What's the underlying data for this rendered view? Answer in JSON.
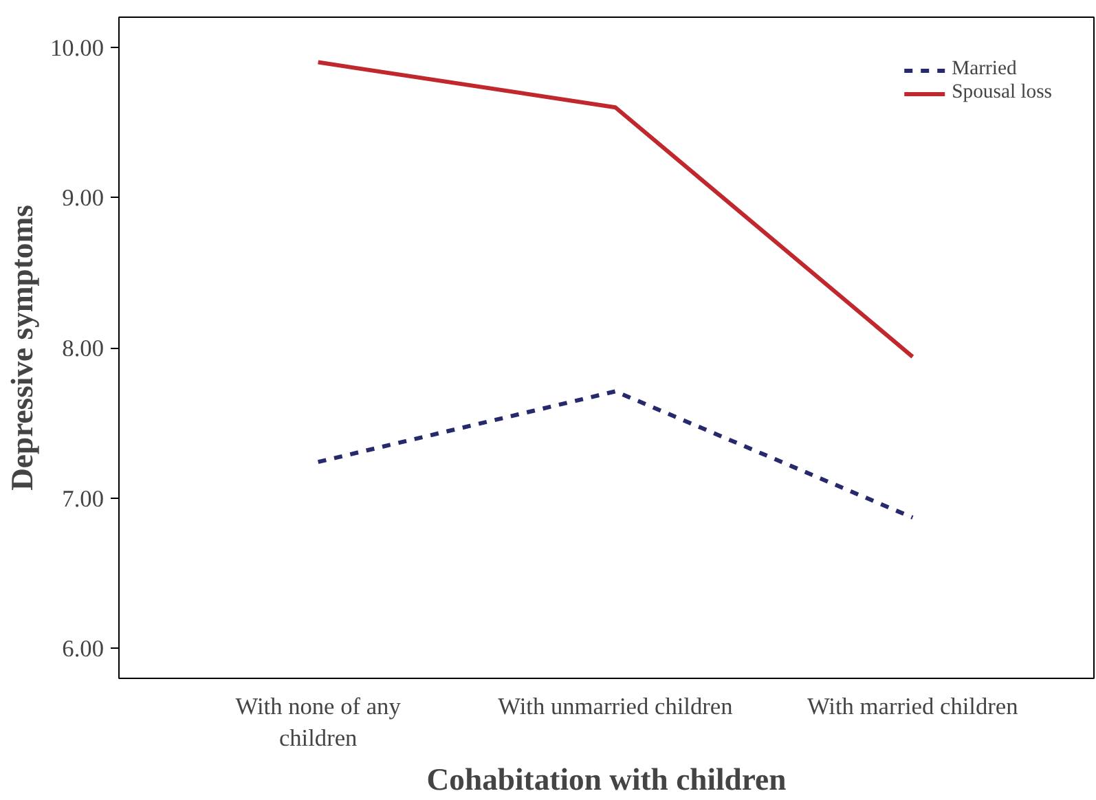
{
  "chart_data": {
    "type": "line",
    "xlabel": "Cohabitation with children",
    "ylabel": "Depressive symptoms",
    "categories": [
      "With none of any children",
      "With unmarried children",
      "With married children"
    ],
    "series": [
      {
        "name": "Married",
        "color": "#27296d",
        "line_style": "dashed",
        "values": [
          7.24,
          7.71,
          6.87
        ]
      },
      {
        "name": "Spousal loss",
        "color": "#c0282d",
        "line_style": "solid",
        "values": [
          9.9,
          9.6,
          7.94
        ]
      }
    ],
    "ylim": [
      5.8,
      10.2
    ],
    "yticks": [
      {
        "value": 6,
        "label": "6.00"
      },
      {
        "value": 7,
        "label": "7.00"
      },
      {
        "value": 8,
        "label": "8.00"
      },
      {
        "value": 9,
        "label": "9.00"
      },
      {
        "value": 10,
        "label": "10.00"
      }
    ],
    "grid": false,
    "legend": "top right",
    "marker": "none"
  }
}
